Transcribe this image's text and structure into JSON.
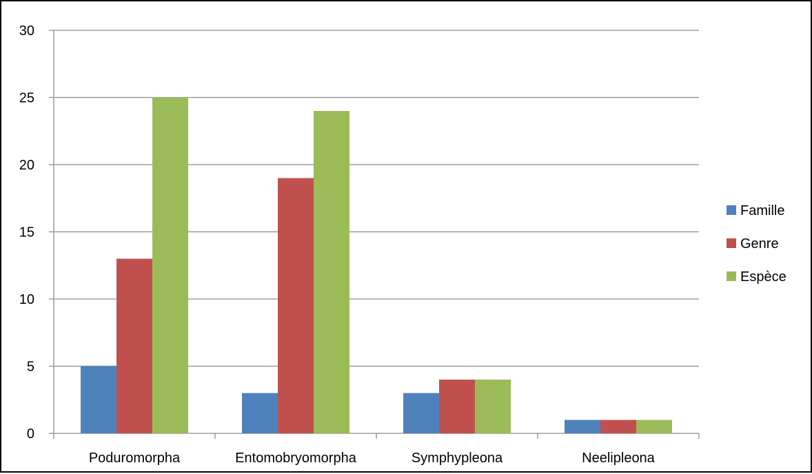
{
  "chart_data": {
    "type": "bar",
    "title": "",
    "xlabel": "",
    "ylabel": "",
    "categories": [
      "Poduromorpha",
      "Entomobryomorpha",
      "Symphypleona",
      "Neelipleona"
    ],
    "series": [
      {
        "name": "Famille",
        "color": "#4F81BD",
        "values": [
          5,
          3,
          3,
          1
        ]
      },
      {
        "name": "Genre",
        "color": "#C0504D",
        "values": [
          13,
          19,
          4,
          1
        ]
      },
      {
        "name": "Espèce",
        "color": "#9BBB59",
        "values": [
          25,
          24,
          4,
          1
        ]
      }
    ],
    "ylim": [
      0,
      30
    ],
    "yticks": [
      0,
      5,
      10,
      15,
      20,
      25,
      30
    ],
    "grid": "horizontal",
    "legend_position": "right"
  }
}
